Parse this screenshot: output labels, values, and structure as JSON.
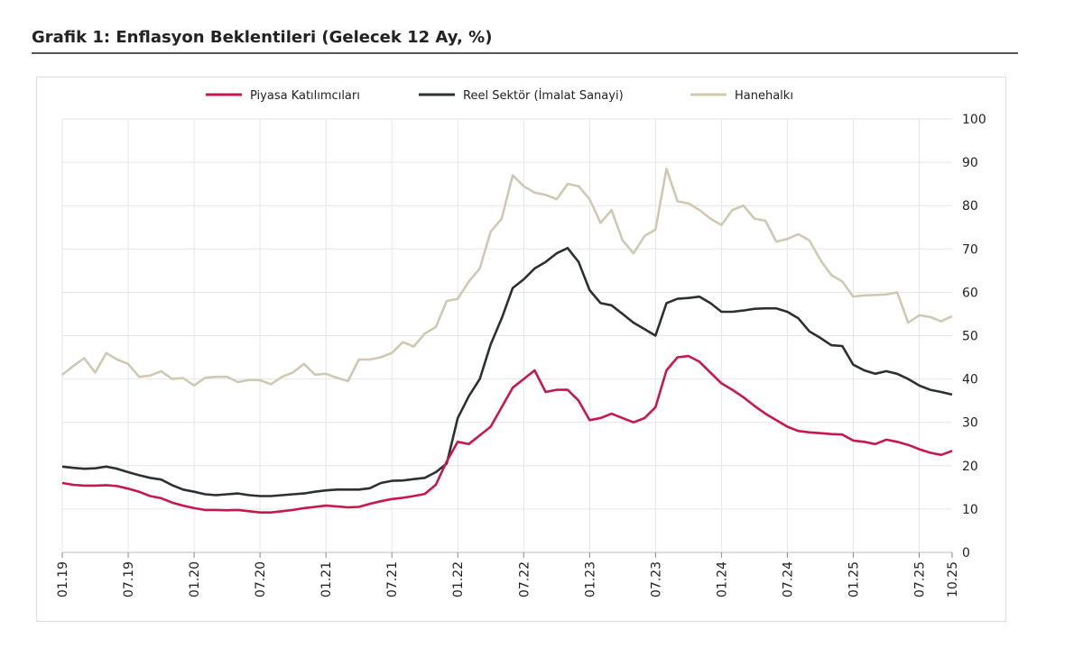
{
  "chart_data": {
    "type": "line",
    "title": "Grafik 1: Enflasyon Beklentileri (Gelecek 12 Ay, %)",
    "x_start": "01.19",
    "x_end": "10.25",
    "x_tick_labels": [
      "01.19",
      "07.19",
      "01.20",
      "07.20",
      "01.21",
      "07.21",
      "01.22",
      "07.22",
      "01.23",
      "07.23",
      "01.24",
      "07.24",
      "01.25",
      "07.25",
      "10.25"
    ],
    "ylim": [
      0,
      100
    ],
    "y_ticks": [
      0,
      10,
      20,
      30,
      40,
      50,
      60,
      70,
      80,
      90,
      100
    ],
    "y_axis_side": "right",
    "grid": true,
    "legend_placement": "top",
    "series": [
      {
        "name": "Piyasa Katılımcıları",
        "color": "#c8174d",
        "values": [
          16,
          15.6,
          15.4,
          15.4,
          15.5,
          15.3,
          14.7,
          14,
          13,
          12.5,
          11.5,
          10.8,
          10.2,
          9.8,
          9.8,
          9.7,
          9.8,
          9.5,
          9.2,
          9.2,
          9.5,
          9.8,
          10.2,
          10.5,
          10.8,
          10.6,
          10.4,
          10.5,
          11.2,
          11.8,
          12.3,
          12.6,
          13,
          13.5,
          15.6,
          21,
          25.5,
          25,
          27,
          29,
          33.5,
          38,
          40,
          42,
          37,
          37.5,
          37.5,
          35,
          30.5,
          31,
          32,
          31,
          30,
          31,
          33.5,
          42,
          45,
          45.3,
          44,
          41.5,
          39,
          37.5,
          35.8,
          33.8,
          32,
          30.5,
          29,
          28,
          27.7,
          27.5,
          27.3,
          27.2,
          25.8,
          25.5,
          25,
          26,
          25.5,
          24.8,
          23.8,
          23,
          22.5,
          23.4
        ]
      },
      {
        "name": "Reel Sektör (İmalat Sanayi)",
        "color": "#2b3133",
        "values": [
          19.8,
          19.5,
          19.3,
          19.4,
          19.8,
          19.3,
          18.5,
          17.8,
          17.2,
          16.8,
          15.5,
          14.5,
          14,
          13.4,
          13.2,
          13.4,
          13.6,
          13.2,
          13,
          13,
          13.2,
          13.4,
          13.6,
          14,
          14.3,
          14.5,
          14.5,
          14.5,
          14.8,
          16,
          16.5,
          16.6,
          16.9,
          17.2,
          18.5,
          20.5,
          31,
          36,
          40,
          48,
          54,
          61,
          63,
          65.5,
          67,
          69,
          70.2,
          67,
          60.5,
          57.5,
          57,
          55,
          53,
          51.5,
          50,
          57.5,
          58.5,
          58.7,
          59,
          57.5,
          55.5,
          55.5,
          55.8,
          56.2,
          56.3,
          56.3,
          55.5,
          54,
          51,
          49.5,
          47.8,
          47.6,
          43.3,
          42,
          41.2,
          41.8,
          41.2,
          40,
          38.5,
          37.5,
          37,
          36.4
        ]
      },
      {
        "name": "Hanehalkı",
        "color": "#cfc9b3",
        "values": [
          41,
          43,
          44.8,
          41.5,
          46,
          44.5,
          43.5,
          40.5,
          40.8,
          41.8,
          40,
          40.2,
          38.5,
          40.3,
          40.5,
          40.5,
          39.3,
          39.8,
          39.7,
          38.8,
          40.5,
          41.5,
          43.5,
          41,
          41.2,
          40.3,
          39.5,
          44.5,
          44.5,
          45,
          46,
          48.5,
          47.5,
          50.5,
          52,
          58,
          58.5,
          62.5,
          65.5,
          74,
          77,
          87,
          84.5,
          83,
          82.5,
          81.5,
          85,
          84.5,
          81.5,
          76,
          79,
          72,
          69,
          73,
          74.5,
          88.5,
          81,
          80.5,
          79,
          77,
          75.5,
          79,
          80,
          77,
          76.5,
          71.7,
          72.3,
          73.4,
          72,
          67.5,
          64,
          62.5,
          59,
          59.3,
          59.4,
          59.5,
          60,
          53,
          54.7,
          54.3,
          53.3,
          54.5
        ]
      }
    ]
  }
}
